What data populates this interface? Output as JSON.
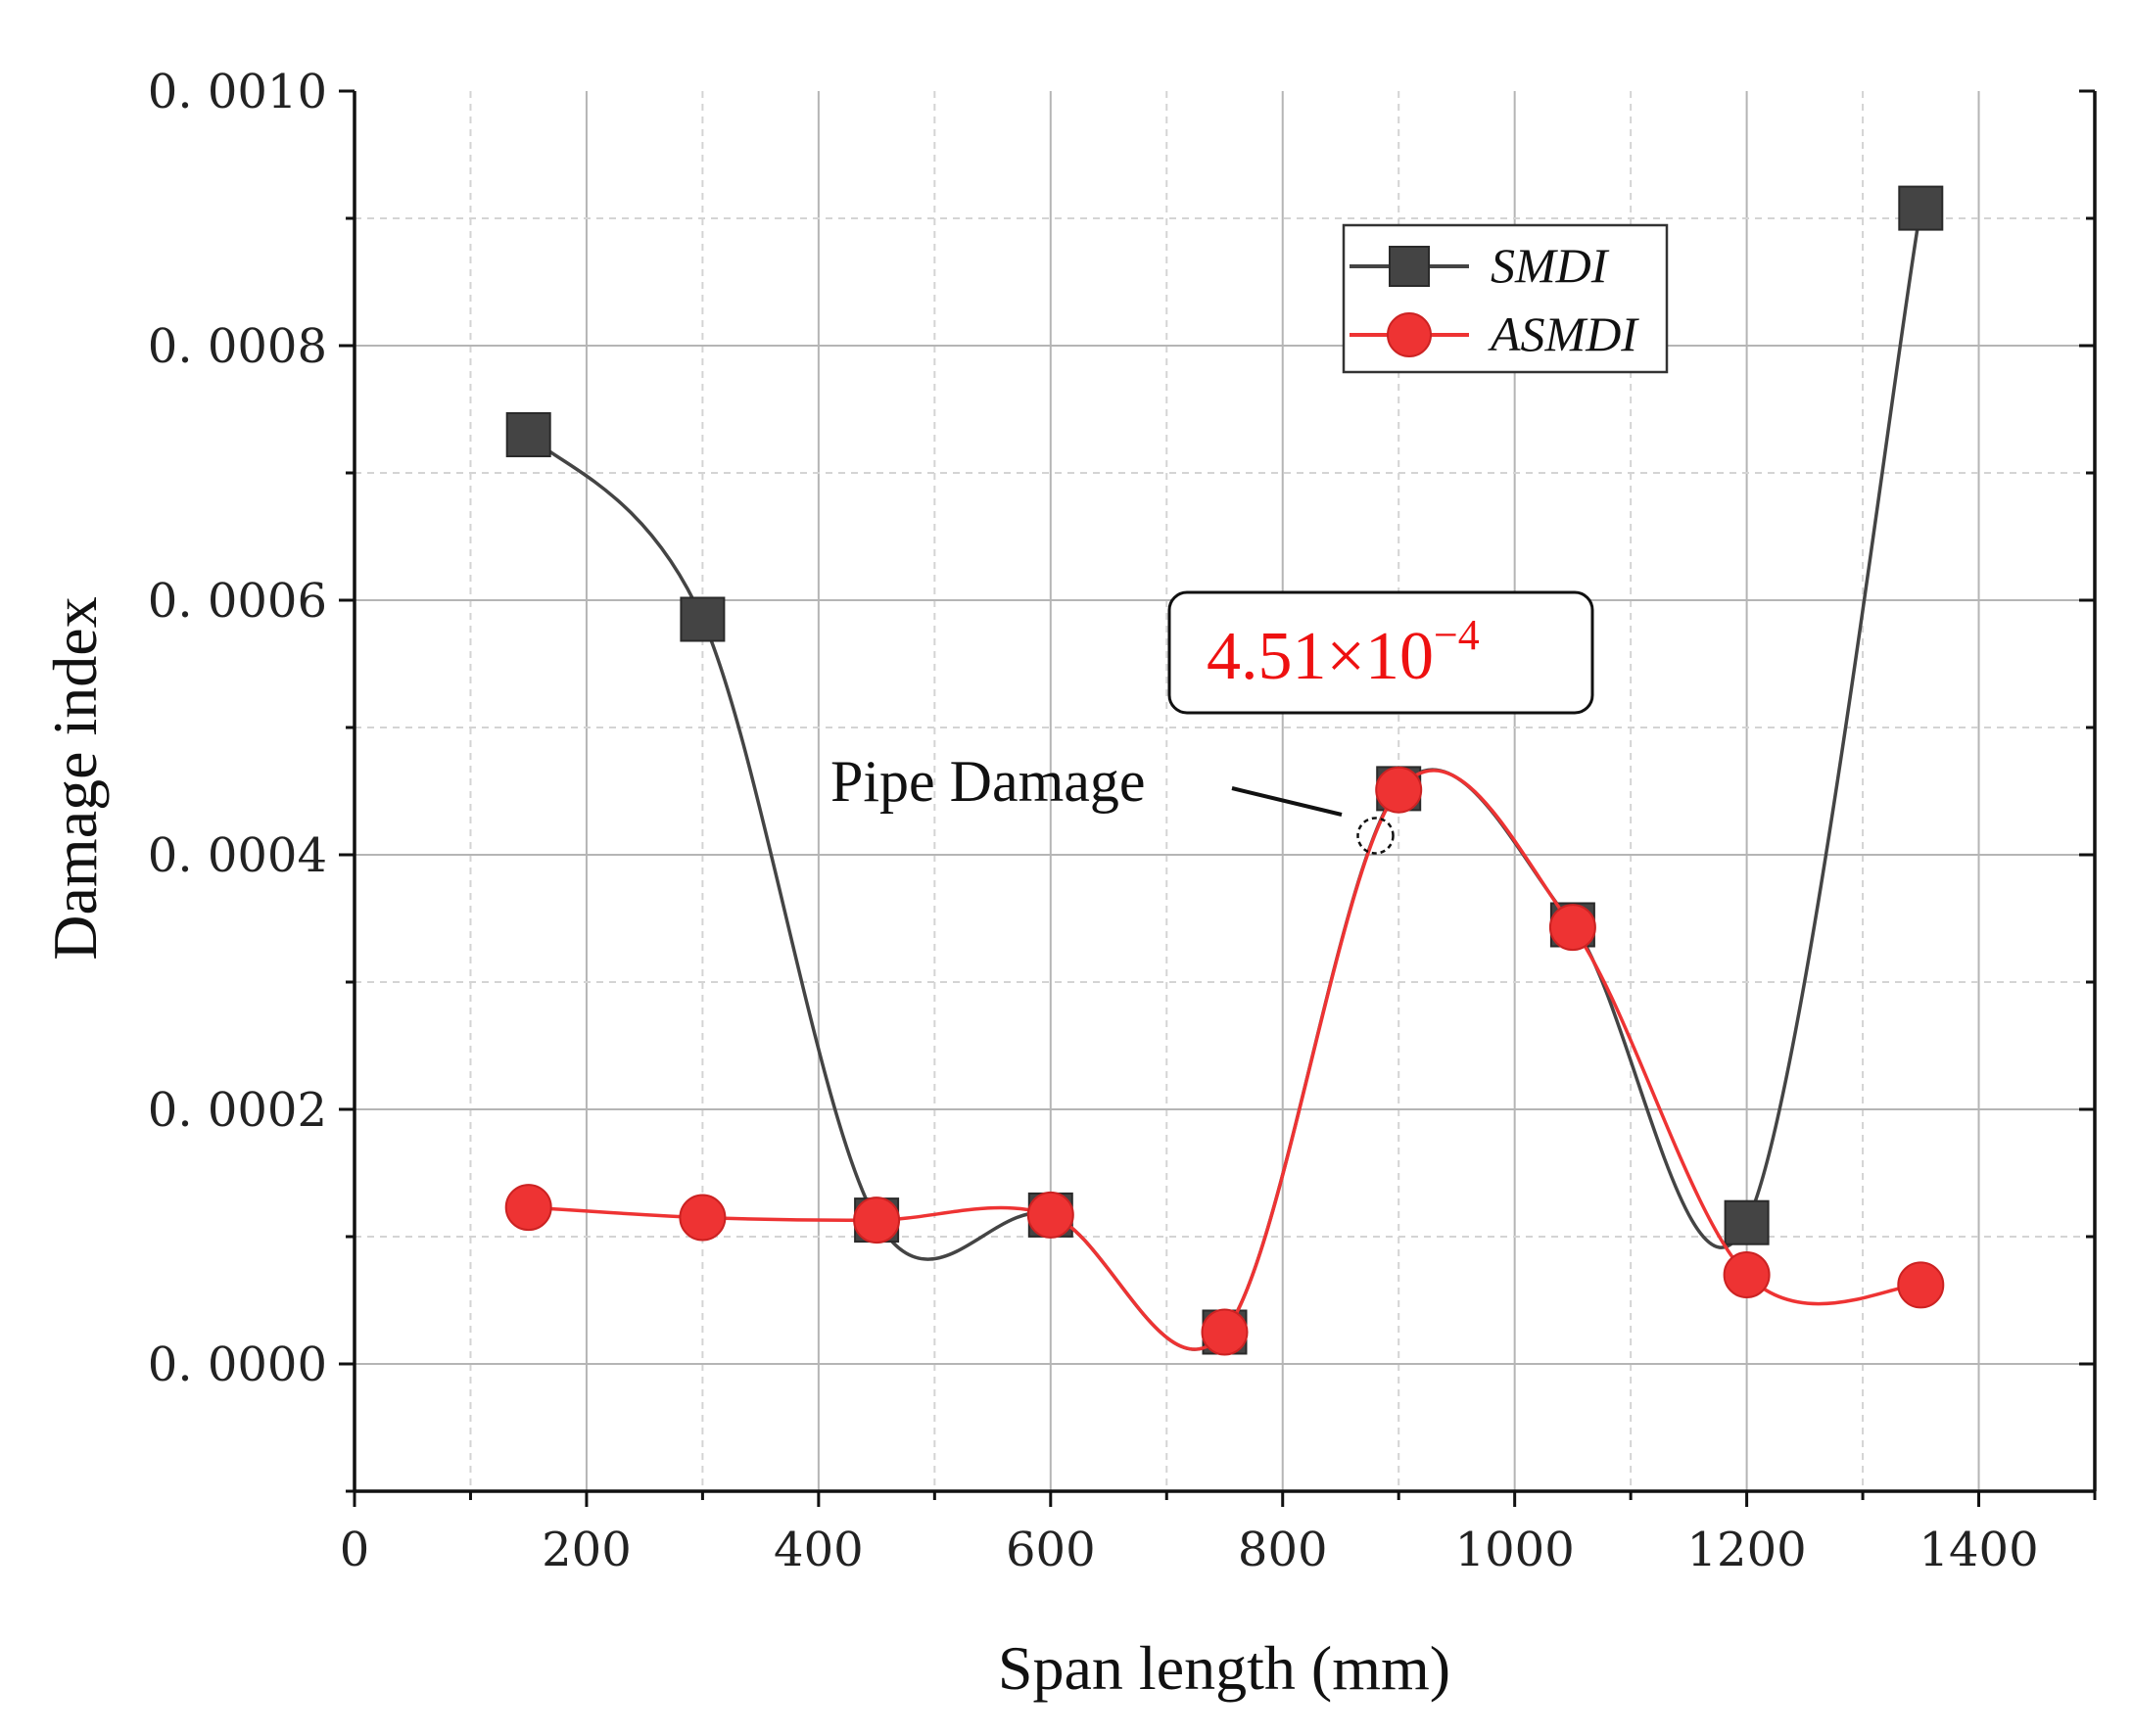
{
  "chart_data": {
    "type": "line",
    "title": "",
    "xlabel": "Span length (mm)",
    "ylabel": "Damage index",
    "xlim": [
      0,
      1500
    ],
    "ylim": [
      -0.0001,
      0.001
    ],
    "x_ticks": [
      0,
      200,
      400,
      600,
      800,
      1000,
      1200,
      1400
    ],
    "x_tick_labels": [
      "0",
      "200",
      "400",
      "600",
      "800",
      "1000",
      "1200",
      "1400"
    ],
    "y_ticks": [
      0.0,
      0.0002,
      0.0004,
      0.0006,
      0.0008,
      0.001
    ],
    "y_tick_labels": [
      "0. 0000",
      "0. 0002",
      "0. 0004",
      "0. 0006",
      "0. 0008",
      "0. 0010"
    ],
    "grid": true,
    "legend_position": "top-right",
    "series": [
      {
        "name": "SMDI",
        "color": "#444444",
        "marker": "square",
        "x": [
          150,
          300,
          450,
          600,
          750,
          900,
          1050,
          1200,
          1350
        ],
        "values": [
          0.00073,
          0.000585,
          0.000113,
          0.000117,
          2.5e-05,
          0.000452,
          0.000345,
          0.000111,
          0.000908
        ]
      },
      {
        "name": "ASMDI",
        "color": "#ee3333",
        "marker": "circle",
        "x": [
          150,
          300,
          450,
          600,
          750,
          900,
          1050,
          1200,
          1350
        ],
        "values": [
          0.000123,
          0.000115,
          0.000113,
          0.000117,
          2.5e-05,
          0.000451,
          0.000343,
          7e-05,
          6.2e-05
        ]
      }
    ],
    "annotations": [
      {
        "text": "Pipe Damage",
        "target_x": 880,
        "target_y": 0.000415
      },
      {
        "text": "4.51×10",
        "superscript": "−4",
        "color": "#ee1111"
      }
    ]
  }
}
